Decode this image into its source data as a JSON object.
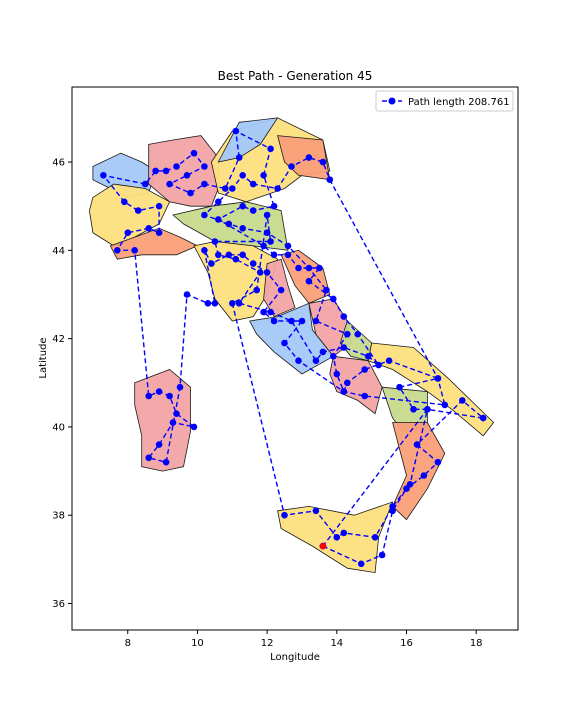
{
  "chart_data": {
    "type": "scatter",
    "title": "Best Path - Generation 45",
    "xlabel": "Longitude",
    "ylabel": "Latitude",
    "xlim": [
      6.4,
      19.2
    ],
    "ylim": [
      35.4,
      47.7
    ],
    "xticks": [
      8,
      10,
      12,
      14,
      16,
      18
    ],
    "yticks": [
      36,
      38,
      40,
      42,
      44,
      46
    ],
    "grid": false,
    "legend_position": "top-right",
    "series": [
      {
        "name": "Path length 208.761",
        "color": "#0000ff",
        "line_style": "dashed",
        "marker": "circle",
        "points": [
          [
            13.6,
            37.3
          ],
          [
            14.7,
            36.9
          ],
          [
            15.3,
            37.1
          ],
          [
            15.6,
            38.1
          ],
          [
            16.0,
            38.6
          ],
          [
            16.5,
            38.9
          ],
          [
            16.9,
            39.2
          ],
          [
            16.3,
            39.6
          ],
          [
            17.6,
            40.6
          ],
          [
            18.2,
            40.2
          ],
          [
            16.6,
            40.4
          ],
          [
            16.2,
            40.4
          ],
          [
            15.8,
            40.9
          ],
          [
            16.9,
            41.1
          ],
          [
            15.5,
            41.5
          ],
          [
            14.8,
            41.3
          ],
          [
            14.3,
            41.0
          ],
          [
            14.2,
            40.8
          ],
          [
            14.0,
            41.2
          ],
          [
            13.9,
            41.6
          ],
          [
            14.3,
            42.1
          ],
          [
            13.4,
            42.4
          ],
          [
            13.7,
            43.1
          ],
          [
            13.2,
            43.6
          ],
          [
            12.6,
            44.1
          ],
          [
            12.0,
            44.4
          ],
          [
            11.3,
            44.5
          ],
          [
            10.9,
            44.6
          ],
          [
            10.2,
            44.8
          ],
          [
            10.6,
            45.1
          ],
          [
            11.0,
            45.4
          ],
          [
            11.3,
            45.7
          ],
          [
            11.6,
            45.5
          ],
          [
            12.3,
            45.4
          ],
          [
            12.7,
            45.9
          ],
          [
            13.2,
            46.1
          ],
          [
            13.6,
            46.0
          ],
          [
            13.8,
            45.6
          ],
          [
            16.9,
            41.1
          ],
          [
            17.1,
            40.5
          ],
          [
            14.8,
            40.7
          ],
          [
            14.2,
            40.8
          ],
          [
            12.9,
            41.5
          ],
          [
            12.5,
            41.9
          ],
          [
            13.0,
            42.4
          ],
          [
            12.2,
            42.4
          ],
          [
            11.9,
            42.6
          ],
          [
            12.4,
            43.1
          ],
          [
            12.0,
            43.5
          ],
          [
            11.6,
            43.7
          ],
          [
            11.3,
            43.9
          ],
          [
            10.9,
            43.9
          ],
          [
            10.4,
            43.7
          ],
          [
            10.2,
            44.0
          ],
          [
            10.5,
            42.8
          ],
          [
            10.3,
            42.8
          ],
          [
            9.7,
            43.0
          ],
          [
            9.5,
            40.9
          ],
          [
            9.1,
            39.2
          ],
          [
            8.6,
            39.3
          ],
          [
            8.9,
            39.6
          ],
          [
            9.3,
            40.1
          ],
          [
            9.9,
            40.0
          ],
          [
            9.4,
            40.3
          ],
          [
            9.2,
            40.7
          ],
          [
            8.9,
            40.8
          ],
          [
            8.6,
            40.7
          ],
          [
            8.2,
            44.0
          ],
          [
            7.7,
            44.0
          ],
          [
            8.0,
            44.4
          ],
          [
            8.6,
            44.5
          ],
          [
            8.9,
            44.4
          ],
          [
            8.9,
            45.0
          ],
          [
            8.3,
            44.9
          ],
          [
            7.9,
            45.1
          ],
          [
            7.3,
            45.7
          ],
          [
            8.5,
            45.5
          ],
          [
            8.8,
            45.8
          ],
          [
            9.1,
            45.8
          ],
          [
            9.4,
            45.9
          ],
          [
            9.9,
            46.2
          ],
          [
            10.2,
            45.9
          ],
          [
            9.7,
            45.7
          ],
          [
            9.2,
            45.5
          ],
          [
            9.8,
            45.3
          ],
          [
            10.2,
            45.5
          ],
          [
            10.8,
            45.4
          ],
          [
            11.2,
            46.1
          ],
          [
            11.1,
            46.7
          ],
          [
            12.1,
            46.3
          ],
          [
            11.9,
            45.7
          ],
          [
            12.2,
            45.0
          ],
          [
            11.6,
            44.9
          ],
          [
            11.3,
            45.0
          ],
          [
            10.6,
            44.7
          ],
          [
            11.9,
            44.1
          ],
          [
            12.2,
            43.9
          ],
          [
            12.6,
            43.9
          ],
          [
            12.9,
            43.6
          ],
          [
            13.5,
            43.6
          ],
          [
            13.2,
            43.3
          ],
          [
            13.9,
            42.9
          ],
          [
            14.2,
            42.5
          ],
          [
            14.6,
            42.1
          ],
          [
            15.2,
            41.4
          ],
          [
            14.9,
            41.6
          ],
          [
            14.2,
            41.8
          ],
          [
            13.6,
            41.7
          ],
          [
            13.4,
            41.5
          ],
          [
            12.7,
            42.4
          ],
          [
            12.1,
            42.6
          ],
          [
            11.2,
            42.8
          ],
          [
            11.8,
            43.5
          ],
          [
            11.1,
            43.8
          ],
          [
            10.6,
            43.9
          ],
          [
            10.5,
            44.2
          ],
          [
            12.1,
            44.2
          ],
          [
            12.0,
            44.8
          ],
          [
            11.7,
            43.1
          ],
          [
            11.0,
            42.8
          ],
          [
            12.5,
            38.0
          ],
          [
            13.4,
            38.1
          ],
          [
            14.0,
            37.5
          ],
          [
            14.2,
            37.6
          ],
          [
            15.1,
            37.5
          ],
          [
            15.6,
            38.2
          ],
          [
            16.1,
            38.7
          ],
          [
            16.6,
            40.4
          ],
          [
            13.6,
            37.3
          ]
        ]
      }
    ],
    "start_point": {
      "color": "#ff0000",
      "x": 13.6,
      "y": 37.3
    },
    "background_map": {
      "description_color_regions": [
        "#a4c8f8",
        "#fa9f79",
        "#f2a4a4",
        "#fde07e",
        "#c7d98c"
      ],
      "coastline_color": "#1a1a1a"
    }
  }
}
